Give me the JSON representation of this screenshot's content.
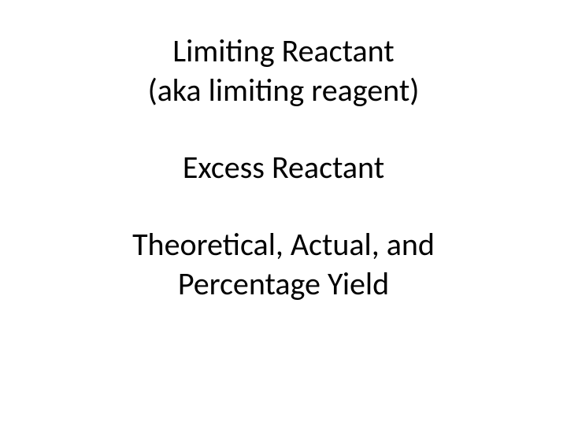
{
  "slide": {
    "line1": "Limiting Reactant",
    "line2": "(aka limiting reagent)",
    "line3": "Excess Reactant",
    "line4": "Theoretical, Actual, and",
    "line5": "Percentage Yield"
  },
  "style": {
    "background_color": "#ffffff",
    "text_color": "#000000",
    "font_size_pt": 40,
    "font_family": "Calibri",
    "font_weight": 400,
    "text_align": "center"
  }
}
